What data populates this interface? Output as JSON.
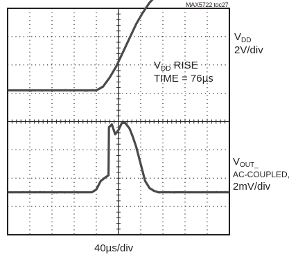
{
  "chart_data": {
    "type": "line",
    "part_number": "MAX5722 toc27",
    "title": "",
    "x_scale": "40µs/div",
    "grid": {
      "horizontal_divisions": 8,
      "vertical_divisions": 10,
      "grid_on": true
    },
    "series": [
      {
        "label_main": "V",
        "label_sub": "DD",
        "scale": "2V/div",
        "unit_per_div": "2V",
        "x_div": [
          0,
          4.0,
          4.3,
          4.6,
          4.9,
          5.2,
          5.5,
          5.8,
          6.1,
          6.4,
          6.7,
          6.9,
          7.1,
          7.4,
          10
        ],
        "y_div": [
          1.1,
          1.1,
          1.23,
          1.55,
          1.95,
          2.45,
          2.95,
          3.45,
          3.85,
          4.2,
          4.45,
          4.55,
          4.6,
          4.62,
          4.62
        ]
      },
      {
        "label_main": "V",
        "label_sub": "OUT_",
        "label_line2": "AC-COUPLED,",
        "scale": "2mV/div",
        "unit_per_div": "2mV",
        "x_div": [
          0,
          3.8,
          4.0,
          4.2,
          4.45,
          4.55,
          4.57,
          4.7,
          4.85,
          5.0,
          5.15,
          5.3,
          5.5,
          5.65,
          5.8,
          6.0,
          6.2,
          6.4,
          6.6,
          6.8,
          10
        ],
        "y_div": [
          -2.5,
          -2.5,
          -2.4,
          -2.1,
          -1.95,
          -1.9,
          -0.2,
          -0.1,
          -0.45,
          -0.3,
          -0.05,
          -0.05,
          -0.25,
          -0.55,
          -0.9,
          -1.5,
          -2.1,
          -2.35,
          -2.45,
          -2.5,
          -2.5
        ]
      }
    ],
    "annotation": {
      "line1_main": "V",
      "line1_sub": "DD",
      "line1_rest": " RISE",
      "line2": "TIME = 76",
      "line2_unit": "µs"
    },
    "colors": {
      "trace": "#4a4a4a",
      "grid": "#2a2a2a",
      "frame": "#231f20"
    }
  }
}
